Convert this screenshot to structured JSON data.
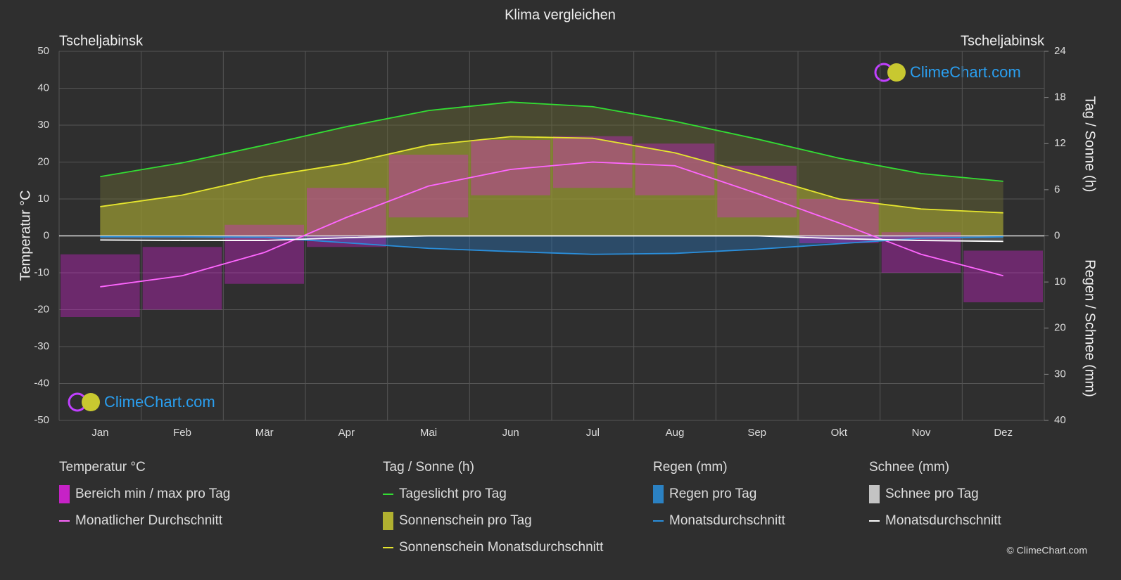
{
  "chart_data": {
    "type": "climate",
    "title": "Klima vergleichen",
    "location_left": "Tscheljabinsk",
    "location_right": "Tscheljabinsk",
    "brand": "ClimeChart.com",
    "copyright": "© ClimeChart.com",
    "ylabel": "Temperatur °C",
    "y2label": "Tag / Sonne (h)",
    "y3label": "Regen / Schnee (mm)",
    "categories": [
      "Jan",
      "Feb",
      "Mär",
      "Apr",
      "Mai",
      "Jun",
      "Jul",
      "Aug",
      "Sep",
      "Okt",
      "Nov",
      "Dez"
    ],
    "ylim": [
      -50,
      50
    ],
    "yticks": [
      -50,
      -40,
      -30,
      -20,
      -10,
      0,
      10,
      20,
      30,
      40,
      50
    ],
    "y2lim": [
      0,
      24
    ],
    "y2ticks": [
      0,
      6,
      12,
      18,
      24
    ],
    "y3lim": [
      0,
      40
    ],
    "y3ticks": [
      10,
      20,
      30,
      40
    ],
    "grid": true,
    "range": {
      "name": "Bereich min / max pro Tag",
      "color": "#e020e0",
      "min": [
        -22,
        -20,
        -13,
        -3,
        5,
        11,
        13,
        11,
        5,
        -2,
        -10,
        -18
      ],
      "max": [
        -5,
        -3,
        3,
        13,
        22,
        26,
        27,
        25,
        19,
        10,
        1,
        -4
      ]
    },
    "series": [
      {
        "name": "Monatlicher Durchschnitt",
        "color": "#ff66ff",
        "axis": "y",
        "values": [
          -13.8,
          -10.8,
          -4.5,
          5,
          13.5,
          18,
          20,
          19,
          11.5,
          3.5,
          -5,
          -10.8
        ]
      },
      {
        "name": "Tageslicht pro Tag",
        "color": "#33dd33",
        "axis": "y2",
        "values": [
          7.7,
          9.5,
          11.8,
          14.2,
          16.3,
          17.4,
          16.8,
          14.9,
          12.6,
          10.1,
          8.1,
          7.1
        ]
      },
      {
        "name": "Sonnenschein Monatsdurchschnitt",
        "color": "#e6e62e",
        "axis": "y2",
        "values": [
          3.8,
          5.3,
          7.7,
          9.4,
          11.8,
          12.9,
          12.7,
          10.8,
          7.9,
          4.8,
          3.5,
          3.0
        ]
      },
      {
        "name": "Monatsdurchschnitt",
        "color": "#2a8fdc",
        "axis": "y3",
        "values": [
          0.2,
          0.2,
          0.3,
          1.5,
          2.7,
          3.4,
          4,
          3.8,
          2.9,
          1.7,
          0.5,
          0.2
        ]
      },
      {
        "name": "Monatsdurchschnitt",
        "color": "#ffffff",
        "axis": "y3",
        "values": [
          0.9,
          1,
          1,
          0.4,
          0,
          0,
          0,
          0,
          0,
          0.6,
          1,
          1.2
        ]
      }
    ],
    "daily_labels": {
      "sun": "Sonnenschein pro Tag",
      "rain": "Regen pro Tag",
      "snow": "Schnee pro Tag"
    },
    "legend_titles": [
      "Temperatur °C",
      "Tag / Sonne (h)",
      "Regen (mm)",
      "Schnee (mm)"
    ]
  }
}
